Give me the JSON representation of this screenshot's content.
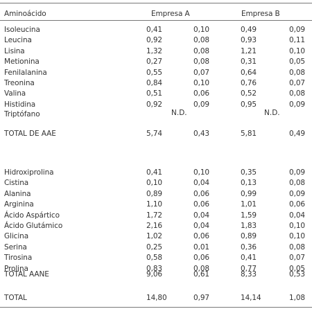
{
  "header": {
    "col0": "Aminoácido",
    "colA": "Empresa  A",
    "colB": "Empresa   B"
  },
  "blocks": [
    [
      [
        "Isoleucina",
        "0,41",
        "0,10",
        "0,49",
        "0,09"
      ],
      [
        "Leucina",
        "0,92",
        "0,08",
        "0,93",
        "0,11"
      ],
      [
        "Lisina",
        "1,32",
        "0,08",
        "1,21",
        "0,10"
      ],
      [
        "Metionina",
        "0,27",
        "0,08",
        "0,31",
        "0,05"
      ],
      [
        "Fenilalanina",
        "0,55",
        "0,07",
        "0,64",
        "0,08"
      ],
      [
        "Treonina",
        "0,84",
        "0,10",
        "0,76",
        "0,07"
      ],
      [
        "Valina",
        "0,51",
        "0,06",
        "0,52",
        "0,08"
      ],
      [
        "Histidina",
        "0,92",
        "0,09",
        "0,95",
        "0,09"
      ]
    ],
    [
      [
        "Hidroxiprolina",
        "0,41",
        "0,10",
        "0,35",
        "0,09"
      ],
      [
        "Cistina",
        "0,10",
        "0,04",
        "0,13",
        "0,08"
      ],
      [
        "Alanina",
        "0,89",
        "0,06",
        "0,99",
        "0,09"
      ],
      [
        "Arginina",
        "1,10",
        "0,06",
        "1,01",
        "0,06"
      ],
      [
        "Ácido Aspártico",
        "1,72",
        "0,04",
        "1,59",
        "0,04"
      ],
      [
        "Ácido Glutámico",
        "2,16",
        "0,04",
        "1,83",
        "0,10"
      ],
      [
        "Glicina",
        "1,02",
        "0,06",
        "0,89",
        "0,10"
      ],
      [
        "Serina",
        "0,25",
        "0,01",
        "0,36",
        "0,08"
      ],
      [
        "Tirosina",
        "0,58",
        "0,06",
        "0,41",
        "0,07"
      ],
      [
        "Prolina",
        "0,83",
        "0,08",
        "0,77",
        "0,05"
      ]
    ]
  ],
  "tryptophan": {
    "label": "Triptófano",
    "a": "N.D.",
    "b": "N.D."
  },
  "totals": [
    [
      "TOTAL DE AAE",
      "5,74",
      "0,43",
      "5,81",
      "0,49"
    ],
    [
      "TOTAL AANE",
      "9,06",
      "0,61",
      "8,33",
      "0,53"
    ],
    [
      "TOTAL",
      "14,80",
      "0,97",
      "14,14",
      "1,08"
    ]
  ]
}
